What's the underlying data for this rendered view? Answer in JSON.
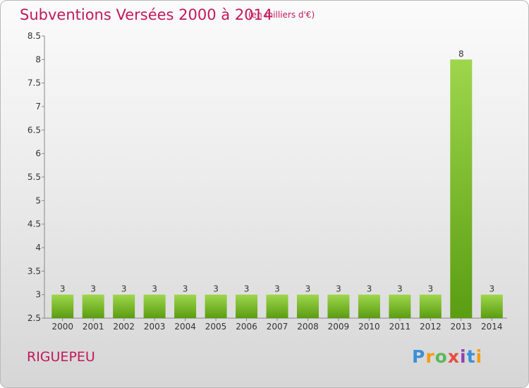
{
  "header": {
    "title": "Subventions Versées 2000 à 2014",
    "unit": "(en milliers d'€)"
  },
  "footer": {
    "commune": "RIGUEPEU",
    "logo_text": "Proxiti"
  },
  "colors": {
    "title": "#c2185b",
    "bar_top": "#9ed64c",
    "bar_bottom": "#5a9d12"
  },
  "chart_data": {
    "type": "bar",
    "title": "Subventions Versées 2000 à 2014",
    "subtitle": "(en milliers d'€)",
    "xlabel": "",
    "ylabel": "",
    "categories": [
      "2000",
      "2001",
      "2002",
      "2003",
      "2004",
      "2005",
      "2006",
      "2007",
      "2008",
      "2009",
      "2010",
      "2011",
      "2012",
      "2013",
      "2014"
    ],
    "values": [
      3,
      3,
      3,
      3,
      3,
      3,
      3,
      3,
      3,
      3,
      3,
      3,
      3,
      8,
      3
    ],
    "ylim": [
      2.5,
      8.5
    ],
    "yticks": [
      2.5,
      3,
      3.5,
      4,
      4.5,
      5,
      5.5,
      6,
      6.5,
      7,
      7.5,
      8,
      8.5
    ],
    "grid": false,
    "legend": "none"
  }
}
